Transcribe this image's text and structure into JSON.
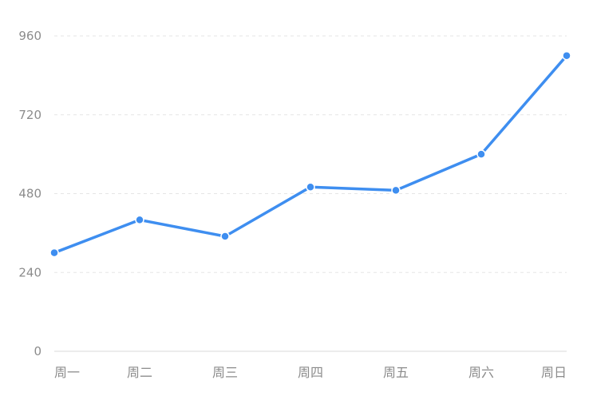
{
  "chart_data": {
    "type": "line",
    "categories": [
      "周一",
      "周二",
      "周三",
      "周四",
      "周五",
      "周六",
      "周日"
    ],
    "series": [
      {
        "values": [
          300,
          400,
          350,
          500,
          490,
          600,
          900
        ]
      }
    ],
    "yticks": [
      0,
      240,
      480,
      720,
      960
    ],
    "ylim": [
      0,
      960
    ],
    "grid": true,
    "title": "",
    "xlabel": "",
    "ylabel": "",
    "colors": {
      "line": "#3e8ef0",
      "grid": "#e6e6e6",
      "axis": "#d9d9d9",
      "label": "#8c8c8c"
    }
  }
}
